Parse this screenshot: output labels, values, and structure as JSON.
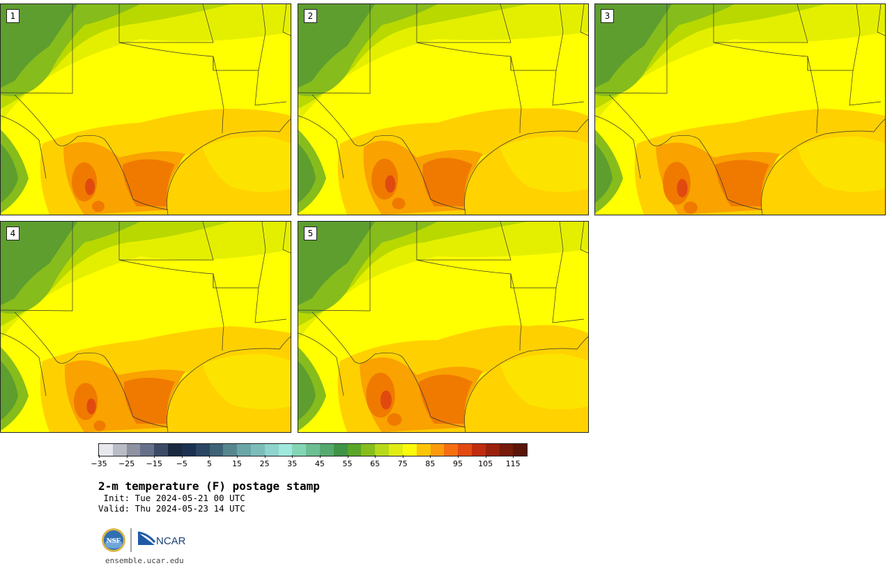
{
  "panels": [
    {
      "label": "1"
    },
    {
      "label": "2"
    },
    {
      "label": "3"
    },
    {
      "label": "4"
    },
    {
      "label": "5"
    }
  ],
  "colorbar": {
    "colors": [
      "#e6e8ec",
      "#b9bcc6",
      "#8e92a3",
      "#66708a",
      "#3c4a68",
      "#1a2840",
      "#1c3050",
      "#2a4662",
      "#3e6276",
      "#56868e",
      "#6aa6a6",
      "#7cbdba",
      "#8ed4cc",
      "#9fe8dc",
      "#82d6b4",
      "#6cbf92",
      "#55a96e",
      "#3f9446",
      "#5aa62a",
      "#86be1c",
      "#b8d81a",
      "#e0ec12",
      "#fafa0a",
      "#fcc406",
      "#fa9a0c",
      "#f56f12",
      "#e24a12",
      "#c02c0e",
      "#9a200c",
      "#761a0a",
      "#5a1408"
    ],
    "tick_labels": [
      "−35",
      "−25",
      "−15",
      "−5",
      "5",
      "15",
      "25",
      "35",
      "45",
      "55",
      "65",
      "75",
      "85",
      "95",
      "105",
      "115"
    ]
  },
  "title": "2-m temperature (F) postage stamp",
  "init_line": " Init: Tue 2024-05-21 00 UTC",
  "valid_line": "Valid: Thu 2024-05-23 14 UTC",
  "logos": {
    "nsf_text": "NSF",
    "ncar_text": "NCAR"
  },
  "site": "ensemble.ucar.edu",
  "map_colors": {
    "dark_green": "#5e9e2e",
    "green": "#86bc1c",
    "yellow_green": "#b8d800",
    "light_yellow": "#e4ef00",
    "yellow": "#ffff00",
    "gold": "#ffd000",
    "orange": "#f9a200",
    "dark_orange": "#f07a00",
    "red_orange": "#e04a10",
    "water": "#ffd200",
    "water_near": "#fde400"
  }
}
